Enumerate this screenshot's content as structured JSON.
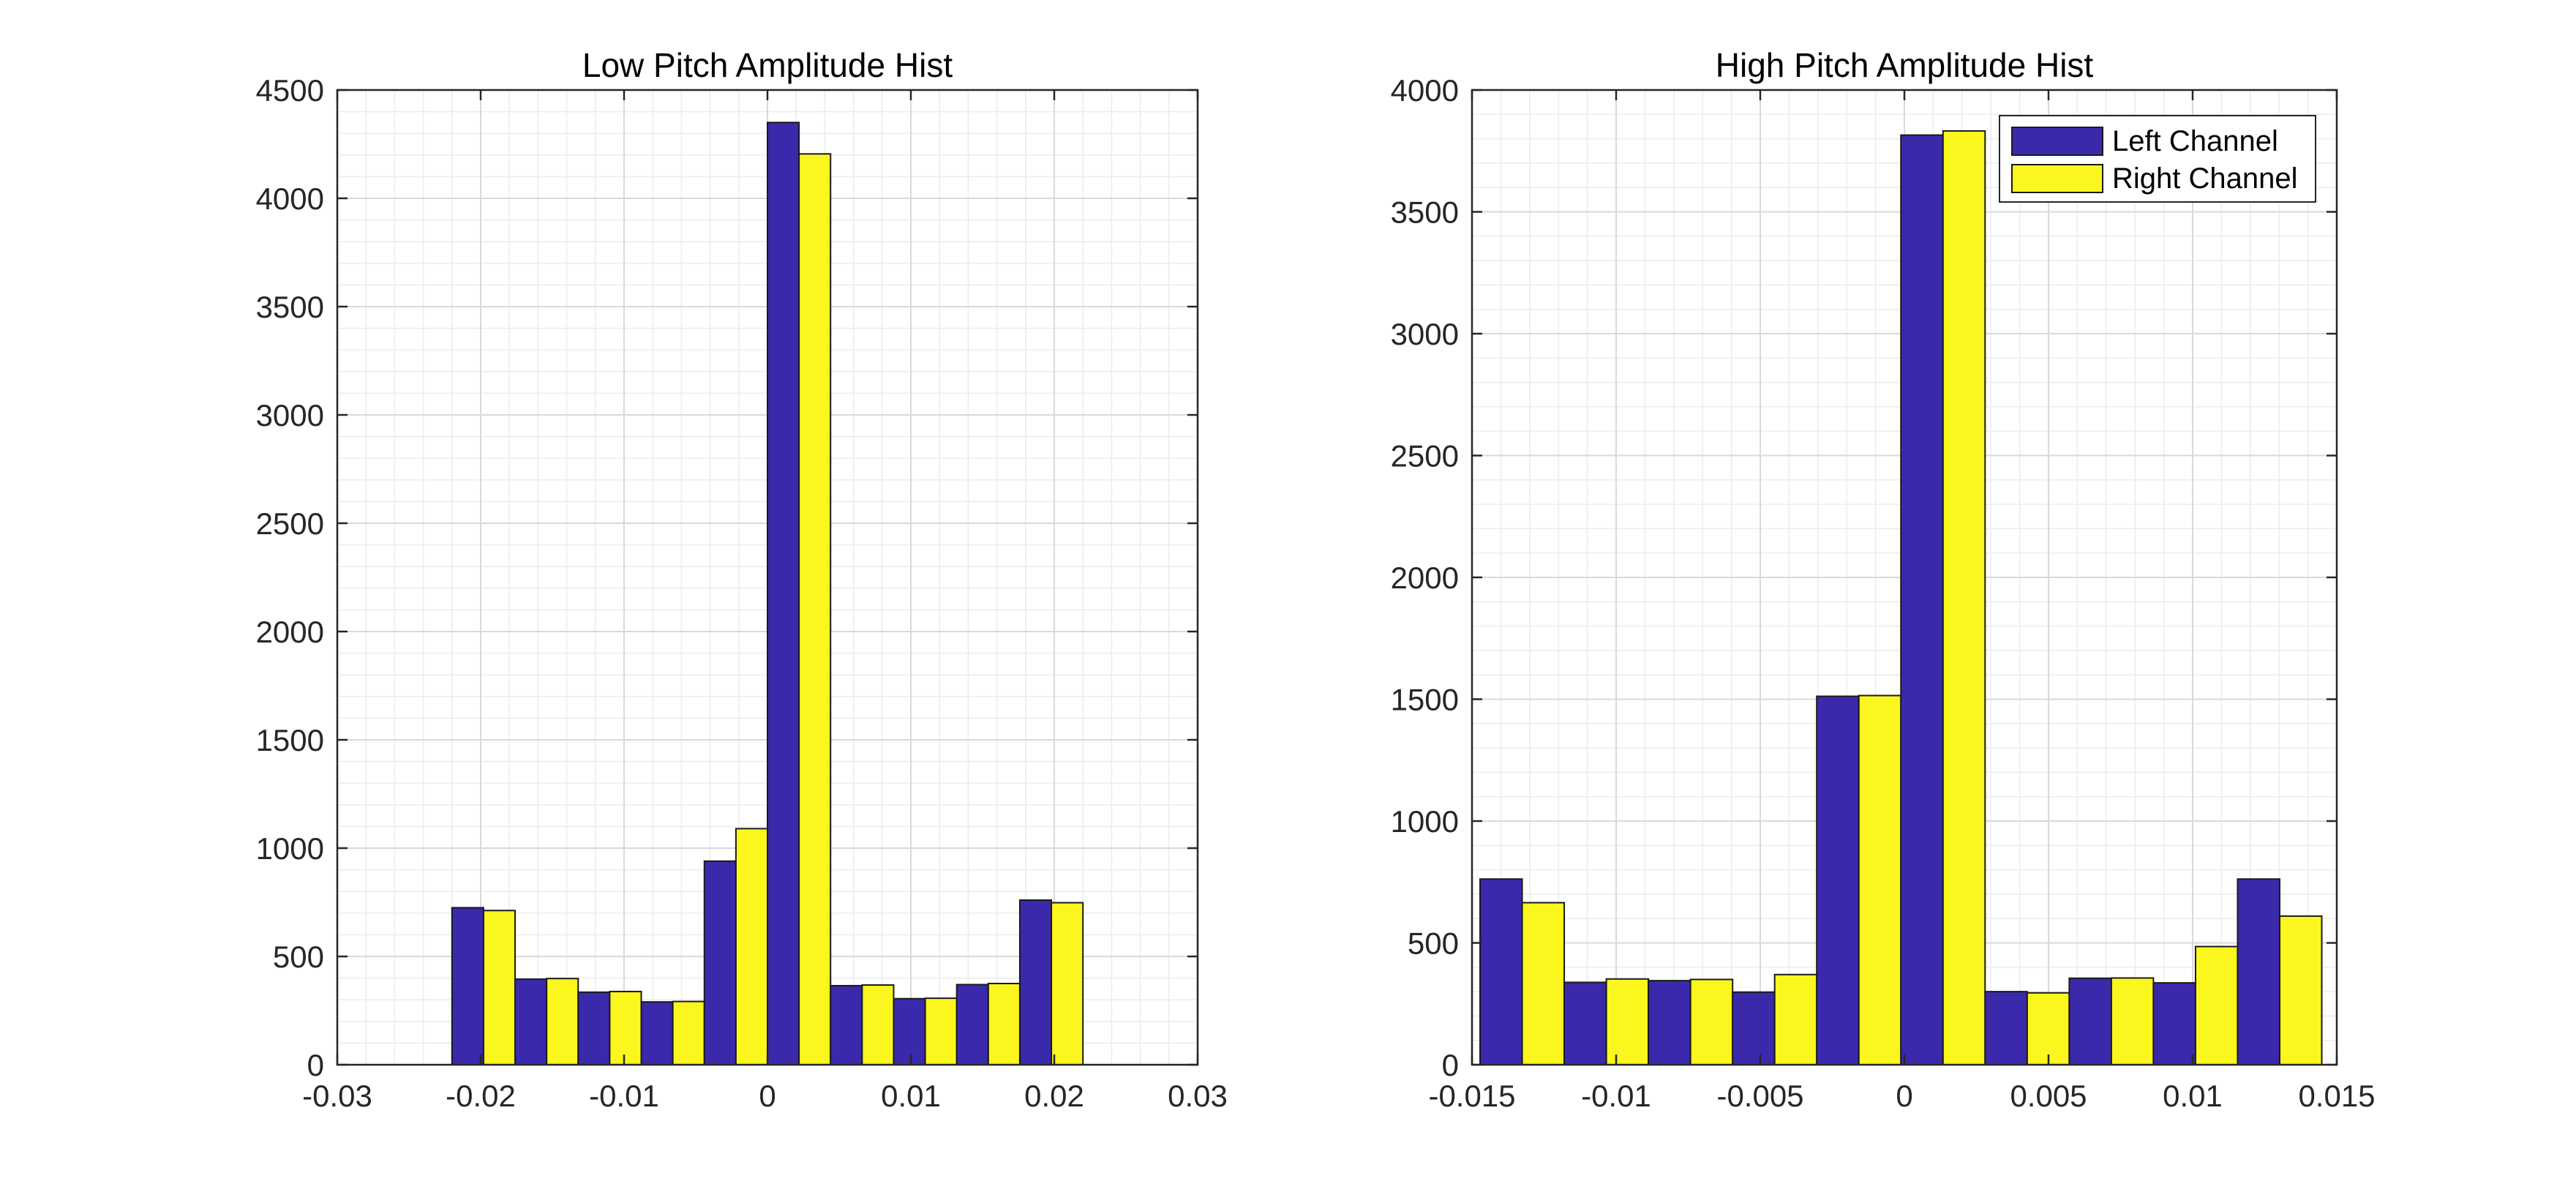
{
  "colors": {
    "left_channel": "#3A2AAB",
    "right_channel": "#FAF61E",
    "bar_edge": "#1a1a1a",
    "grid_major": "#d9d9d9",
    "grid_minor": "#ececec",
    "axes": "#262626"
  },
  "chart_data": [
    {
      "type": "bar",
      "title": "Low Pitch Amplitude Hist",
      "xlabel": "",
      "ylabel": "",
      "xlim": [
        -0.03,
        0.03
      ],
      "ylim": [
        0,
        4500
      ],
      "xticks": [
        -0.03,
        -0.02,
        -0.01,
        0,
        0.01,
        0.02,
        0.03
      ],
      "xtick_labels": [
        "-0.03",
        "-0.02",
        "-0.01",
        "0",
        "0.01",
        "0.02",
        "0.03"
      ],
      "yticks": [
        0,
        500,
        1000,
        1500,
        2000,
        2500,
        3000,
        3500,
        4000,
        4500
      ],
      "ytick_labels": [
        "0",
        "500",
        "1000",
        "1500",
        "2000",
        "2500",
        "3000",
        "3500",
        "4000",
        "4500"
      ],
      "grid": true,
      "minor_grid": true,
      "bin_width": 0.0044,
      "x": [
        -0.0198,
        -0.0154,
        -0.011,
        -0.0066,
        -0.0022,
        0.0022,
        0.0066,
        0.011,
        0.0154,
        0.0198
      ],
      "series": [
        {
          "name": "Left Channel",
          "values": [
            725,
            395,
            335,
            290,
            940,
            4350,
            365,
            305,
            370,
            760
          ]
        },
        {
          "name": "Right Channel",
          "values": [
            712,
            398,
            338,
            292,
            1090,
            4205,
            368,
            307,
            375,
            748
          ]
        }
      ],
      "legend": null
    },
    {
      "type": "bar",
      "title": "High Pitch Amplitude Hist",
      "xlabel": "",
      "ylabel": "",
      "xlim": [
        -0.015,
        0.015
      ],
      "ylim": [
        0,
        4000
      ],
      "xticks": [
        -0.015,
        -0.01,
        -0.005,
        0,
        0.005,
        0.01,
        0.015
      ],
      "xtick_labels": [
        "-0.015",
        "-0.01",
        "-0.005",
        "0",
        "0.005",
        "0.01",
        "0.015"
      ],
      "yticks": [
        0,
        500,
        1000,
        1500,
        2000,
        2500,
        3000,
        3500,
        4000
      ],
      "ytick_labels": [
        "0",
        "500",
        "1000",
        "1500",
        "2000",
        "2500",
        "3000",
        "3500",
        "4000"
      ],
      "grid": true,
      "minor_grid": true,
      "bin_width": 0.00292,
      "x": [
        -0.01326,
        -0.01034,
        -0.00742,
        -0.0045,
        -0.00158,
        0.00134,
        0.00426,
        0.00718,
        0.0101,
        0.01302
      ],
      "series": [
        {
          "name": "Left Channel",
          "values": [
            762,
            338,
            345,
            298,
            1512,
            3815,
            300,
            355,
            336,
            762
          ]
        },
        {
          "name": "Right Channel",
          "values": [
            665,
            352,
            350,
            370,
            1515,
            3832,
            295,
            356,
            485,
            610
          ]
        }
      ],
      "legend": {
        "placement": "top-right",
        "entries": [
          "Left Channel",
          "Right Channel"
        ]
      }
    }
  ]
}
